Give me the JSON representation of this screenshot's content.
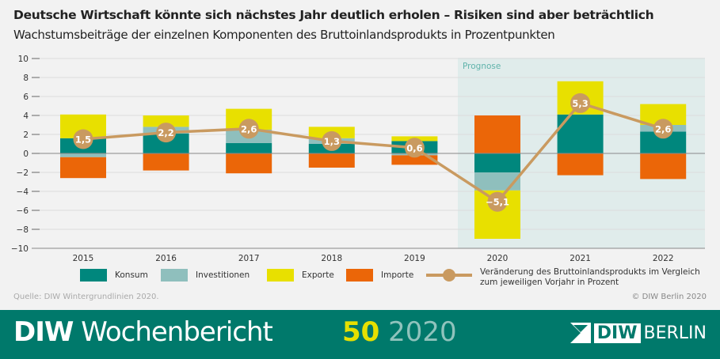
{
  "header": {
    "title": "Deutsche Wirtschaft könnte sich nächstes Jahr deutlich erholen – Risiken sind aber beträchtlich",
    "subtitle": "Wachstumsbeiträge der einzelnen Komponenten des Bruttoinlandsprodukts in Prozentpunkten"
  },
  "chart_data": {
    "type": "bar",
    "stacked": true,
    "categories": [
      "2015",
      "2016",
      "2017",
      "2018",
      "2019",
      "2020",
      "2021",
      "2022"
    ],
    "ylim": [
      -10,
      10
    ],
    "yticks": [
      10,
      8,
      6,
      4,
      2,
      0,
      -2,
      -4,
      -6,
      -8,
      -10
    ],
    "ytick_labels": [
      "10",
      "8",
      "6",
      "4",
      "2",
      "0",
      "−2",
      "−4",
      "−6",
      "−8",
      "−10"
    ],
    "grid": true,
    "annotation": "Prognose",
    "forecast_from": "2020",
    "series": [
      {
        "name": "Konsum",
        "color": "#00877d",
        "values": [
          1.6,
          2.1,
          1.1,
          1.0,
          1.3,
          -2.0,
          4.1,
          2.3
        ]
      },
      {
        "name": "Investitionen",
        "color": "#8fbfbd",
        "values": [
          -0.4,
          0.7,
          1.4,
          0.6,
          -0.2,
          -1.9,
          0.0,
          0.7
        ]
      },
      {
        "name": "Exporte",
        "color": "#e8e000",
        "values": [
          2.5,
          1.2,
          2.2,
          1.2,
          0.5,
          -5.1,
          3.5,
          2.2
        ]
      },
      {
        "name": "Importe",
        "color": "#eb6608",
        "values": [
          -2.2,
          -1.8,
          -2.1,
          -1.5,
          -1.0,
          4.0,
          -2.3,
          -2.7
        ]
      }
    ],
    "line": {
      "name": "Veränderung des Bruttoinlandsprodukts im Vergleich zum jeweiligen Vorjahr in Prozent",
      "color": "#c99a60",
      "values": [
        1.5,
        2.2,
        2.6,
        1.3,
        0.6,
        -5.1,
        5.3,
        2.6
      ],
      "labels": [
        "1,5",
        "2,2",
        "2,6",
        "1,3",
        "0,6",
        "−5,1",
        "5,3",
        "2,6"
      ]
    }
  },
  "legend": {
    "line_label_1": "Veränderung des Bruttoinlandsprodukts im Vergleich",
    "line_label_2": "zum jeweiligen Vorjahr in Prozent"
  },
  "source": "Quelle: DIW Wintergrundlinien 2020.",
  "copyright": "© DIW Berlin 2020",
  "footer": {
    "brand_bold": "DIW",
    "brand_rest": "Wochenbericht",
    "issue": "50",
    "year": "2020",
    "logo_text": "DIW",
    "logo_city": "BERLIN",
    "footer_color": "#00796b"
  }
}
